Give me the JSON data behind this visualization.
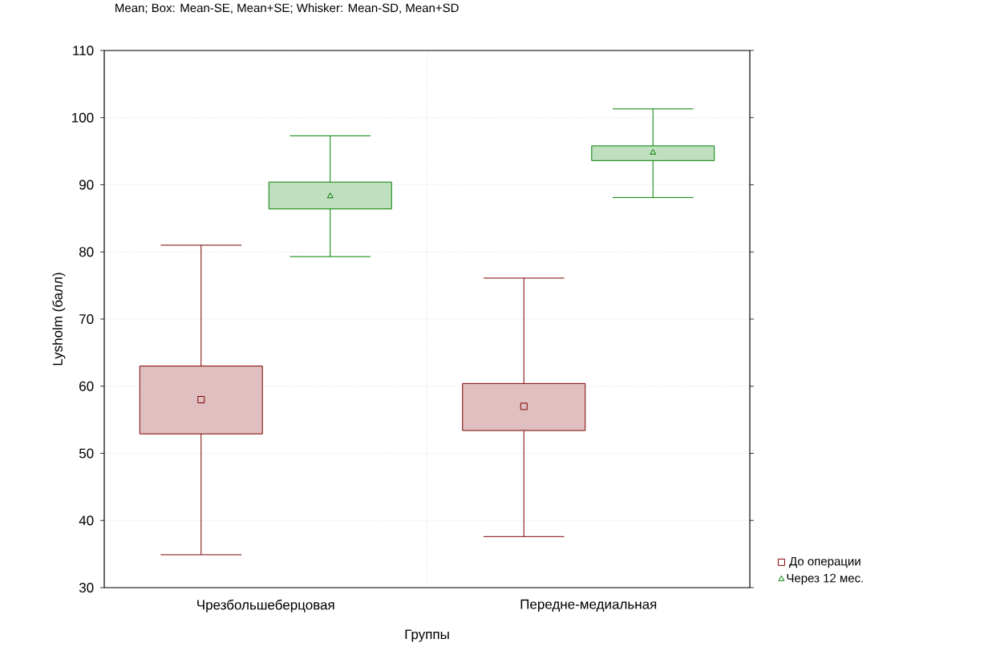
{
  "chart_data": {
    "type": "box",
    "title": "Mean; Box: Mean-SE, Mean+SE; Whisker: Mean-SD, Mean+SD",
    "xlabel": "Группы",
    "ylabel": "Lysholm (балл)",
    "categories": [
      "Чрезбольшеберцовая",
      "Передне-медиальная"
    ],
    "ylim": [
      30,
      110
    ],
    "yticks": [
      30,
      40,
      50,
      60,
      70,
      80,
      90,
      100,
      110
    ],
    "grid": true,
    "legend": "bottom right",
    "series": [
      {
        "name": "До операции",
        "color": "#800000",
        "marker": "square",
        "boxes": [
          {
            "low": 34.9,
            "q1": 52.9,
            "median": 58.0,
            "q3": 63.0,
            "high": 81.0
          },
          {
            "low": 37.6,
            "q1": 53.4,
            "median": 57.0,
            "q3": 60.4,
            "high": 76.1
          }
        ]
      },
      {
        "name": "Через 12 мес.",
        "color": "#008000",
        "marker": "triangle",
        "boxes": [
          {
            "low": 79.3,
            "q1": 86.4,
            "median": 88.3,
            "q3": 90.4,
            "high": 97.3
          },
          {
            "low": 88.1,
            "q1": 93.6,
            "median": 94.8,
            "q3": 95.8,
            "high": 101.3
          }
        ]
      }
    ]
  }
}
